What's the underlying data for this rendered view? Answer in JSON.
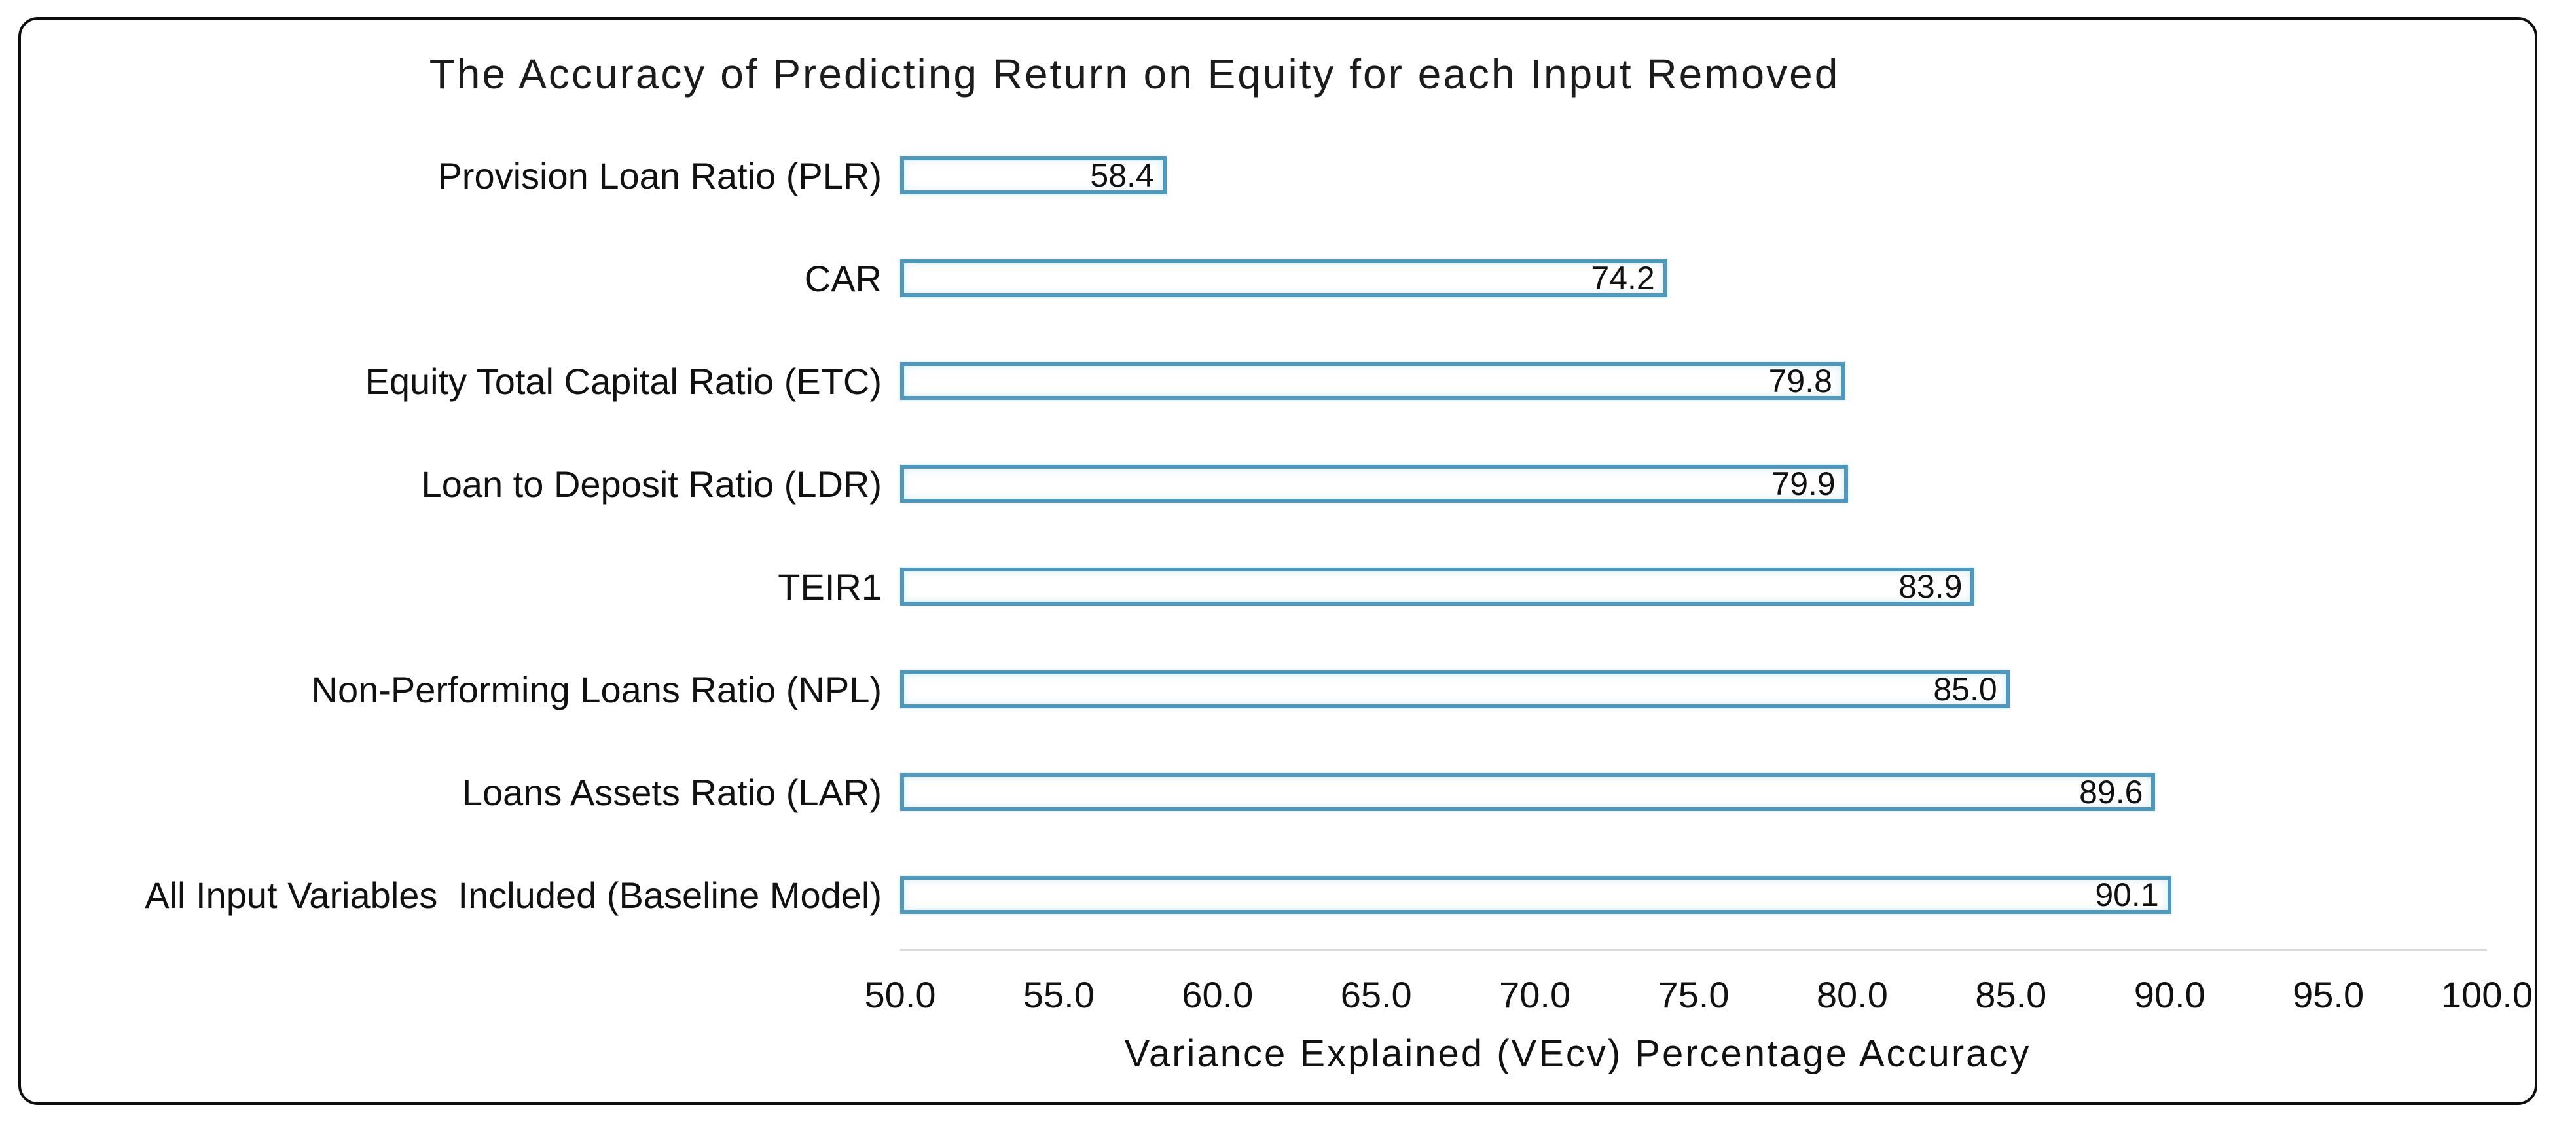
{
  "chart_data": {
    "type": "bar",
    "orientation": "horizontal",
    "title": "The Accuracy of Predicting Return on Equity for each Input Removed",
    "xlabel": "Variance Explained (VEcv) Percentage Accuracy",
    "ylabel": "",
    "categories": [
      "Provision Loan Ratio (PLR)",
      "CAR",
      "Equity Total Capital Ratio (ETC)",
      "Loan to Deposit Ratio (LDR)",
      "TEIR1",
      "Non-Performing Loans Ratio (NPL)",
      "Loans Assets Ratio (LAR)",
      "All Input Variables  Included (Baseline Model)"
    ],
    "values": [
      58.4,
      74.2,
      79.8,
      79.9,
      83.9,
      85.0,
      89.6,
      90.1
    ],
    "value_labels": [
      "58.4",
      "74.2",
      "79.8",
      "79.9",
      "83.9",
      "85.0",
      "89.6",
      "90.1"
    ],
    "xlim": [
      50.0,
      100.0
    ],
    "x_ticks": [
      50.0,
      55.0,
      60.0,
      65.0,
      70.0,
      75.0,
      80.0,
      85.0,
      90.0,
      95.0,
      100.0
    ],
    "x_tick_labels": [
      "50.0",
      "55.0",
      "60.0",
      "65.0",
      "70.0",
      "75.0",
      "80.0",
      "85.0",
      "90.0",
      "95.0",
      "100.0"
    ],
    "data_label_position": "inside-end",
    "grid": false,
    "legend": false,
    "colors": {
      "bar_fill": "#ffffff",
      "bar_border": "#4f97bb",
      "text": "#111111",
      "frame_border": "#0d0d0d",
      "axis_line": "#d9d9d9",
      "background": "#ffffff"
    }
  }
}
